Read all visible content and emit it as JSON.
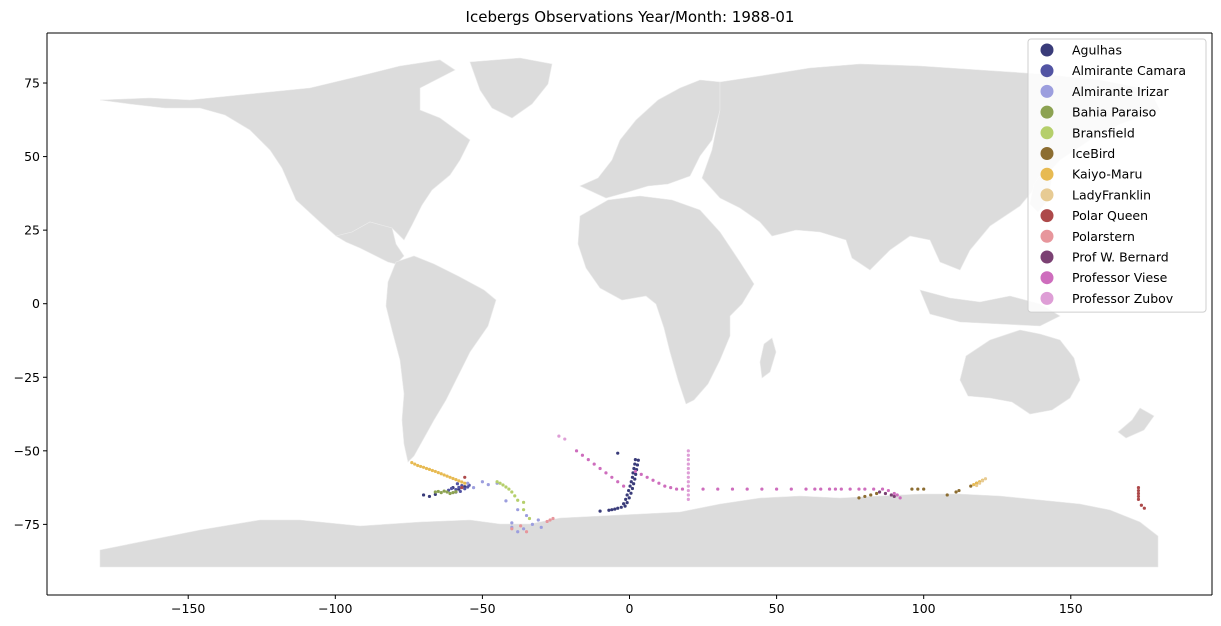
{
  "chart_data": {
    "type": "scatter",
    "title": "Icebergs Observations Year/Month: 1988-01",
    "xlabel": "",
    "ylabel": "",
    "xlim": [
      -198,
      198
    ],
    "ylim": [
      -99,
      92
    ],
    "xticks": [
      -150,
      -100,
      -50,
      0,
      50,
      100,
      150
    ],
    "yticks": [
      -75,
      -50,
      -25,
      0,
      25,
      50,
      75
    ],
    "legend_position": "top-right",
    "background_map": "world countries (light gray)",
    "land_color": "#dcdcdc",
    "series": [
      {
        "name": "Agulhas",
        "color": "#393b79",
        "points": [
          [
            2,
            -53
          ],
          [
            1.8,
            -54.5
          ],
          [
            1.5,
            -56
          ],
          [
            1.2,
            -57.5
          ],
          [
            1,
            -59
          ],
          [
            0.6,
            -60.5
          ],
          [
            0.2,
            -62
          ],
          [
            -0.3,
            -63.5
          ],
          [
            -0.8,
            -65
          ],
          [
            -1.3,
            -66.5
          ],
          [
            -2,
            -68
          ],
          [
            -2.8,
            -69.2
          ],
          [
            3,
            -53.2
          ],
          [
            2.7,
            -54.8
          ],
          [
            2.4,
            -56.4
          ],
          [
            2.1,
            -58
          ],
          [
            1.8,
            -59.6
          ],
          [
            1.4,
            -61.2
          ],
          [
            1,
            -62.8
          ],
          [
            0.5,
            -64.4
          ],
          [
            -0.1,
            -66
          ],
          [
            -0.8,
            -67.6
          ],
          [
            -1.5,
            -68.8
          ],
          [
            -4,
            -69.5
          ],
          [
            -5,
            -69.8
          ],
          [
            -6,
            -70
          ],
          [
            -7,
            -70.2
          ],
          [
            -10,
            -70.5
          ],
          [
            -4,
            -50.8
          ],
          [
            -70,
            -65
          ],
          [
            -68,
            -65.5
          ],
          [
            -66,
            -64.8
          ],
          [
            -60,
            -62.5
          ],
          [
            -58,
            -63
          ],
          [
            -56,
            -62.2
          ],
          [
            -59,
            -64
          ]
        ]
      },
      {
        "name": "Almirante Camara",
        "color": "#5254a3",
        "points": [
          [
            -57,
            -61.8
          ],
          [
            -58,
            -62.4
          ],
          [
            -59,
            -63.2
          ],
          [
            -56,
            -62.9
          ],
          [
            -55,
            -62.3
          ],
          [
            -60.5,
            -62.8
          ],
          [
            -57.5,
            -63.8
          ],
          [
            -54.5,
            -61.7
          ],
          [
            -61.5,
            -63.4
          ],
          [
            -58.5,
            -61.2
          ]
        ]
      },
      {
        "name": "Almirante Irizar",
        "color": "#9c9ede",
        "points": [
          [
            -55,
            -61
          ],
          [
            -53,
            -62.5
          ],
          [
            -50,
            -60.5
          ],
          [
            -48,
            -61.5
          ],
          [
            -45,
            -61
          ],
          [
            -40,
            -76
          ],
          [
            -38,
            -77.5
          ],
          [
            -36,
            -76.5
          ],
          [
            -33,
            -75
          ],
          [
            -31,
            -73.5
          ],
          [
            -30,
            -76
          ],
          [
            -35,
            -72
          ],
          [
            -38,
            -70
          ],
          [
            -42,
            -67
          ],
          [
            -40,
            -74.5
          ]
        ]
      },
      {
        "name": "Bahia Paraiso",
        "color": "#8ca252",
        "points": [
          [
            -62,
            -64
          ],
          [
            -63,
            -63.7
          ],
          [
            -64,
            -64.2
          ],
          [
            -65,
            -63.8
          ],
          [
            -66,
            -64
          ],
          [
            -61,
            -64.5
          ],
          [
            -60,
            -64.2
          ],
          [
            -59,
            -63.9
          ]
        ]
      },
      {
        "name": "Bransfield",
        "color": "#b5cf6b",
        "points": [
          [
            -45,
            -60.5
          ],
          [
            -44,
            -61
          ],
          [
            -43,
            -61.6
          ],
          [
            -42,
            -62.3
          ],
          [
            -41,
            -63
          ],
          [
            -40,
            -64
          ],
          [
            -39,
            -65.3
          ],
          [
            -38,
            -66.8
          ],
          [
            -36,
            -67.5
          ],
          [
            -34,
            -73
          ],
          [
            -36,
            -70
          ]
        ]
      },
      {
        "name": "IceBird",
        "color": "#8c6d31",
        "points": [
          [
            78,
            -66
          ],
          [
            80,
            -65.5
          ],
          [
            82,
            -65
          ],
          [
            84,
            -64.5
          ],
          [
            96,
            -63
          ],
          [
            98,
            -63
          ],
          [
            100,
            -63
          ],
          [
            108,
            -65
          ],
          [
            111,
            -64
          ],
          [
            112,
            -63.5
          ],
          [
            116,
            -62
          ],
          [
            118,
            -61
          ]
        ]
      },
      {
        "name": "Kaiyo-Maru",
        "color": "#e7ba52",
        "points": [
          [
            -74,
            -54
          ],
          [
            -72,
            -55
          ],
          [
            -70,
            -55.6
          ],
          [
            -68,
            -56.3
          ],
          [
            -66,
            -57
          ],
          [
            -64,
            -57.8
          ],
          [
            -62,
            -58.6
          ],
          [
            -60,
            -59.4
          ],
          [
            -58,
            -60.2
          ],
          [
            -56,
            -61
          ],
          [
            -73,
            -54.5
          ],
          [
            -71,
            -55.3
          ],
          [
            -69,
            -56
          ],
          [
            -67,
            -56.7
          ],
          [
            -65,
            -57.4
          ],
          [
            -63,
            -58.2
          ],
          [
            -61,
            -59
          ],
          [
            -59,
            -59.8
          ],
          [
            -57,
            -60.6
          ],
          [
            117,
            -61.5
          ],
          [
            118,
            -61
          ],
          [
            119,
            -60.5
          ],
          [
            120,
            -60
          ]
        ]
      },
      {
        "name": "LadyFranklin",
        "color": "#e7cb94",
        "points": [
          [
            121,
            -59.5
          ],
          [
            120,
            -60.2
          ],
          [
            119,
            -61
          ],
          [
            118,
            -61.8
          ]
        ]
      },
      {
        "name": "Polar Queen",
        "color": "#ad494a",
        "points": [
          [
            173,
            -62.5
          ],
          [
            173,
            -63.5
          ],
          [
            173,
            -64.5
          ],
          [
            173,
            -65.5
          ],
          [
            173,
            -66.5
          ],
          [
            174,
            -68.5
          ],
          [
            175,
            -69.5
          ],
          [
            -56,
            -59
          ],
          [
            -57,
            -62.5
          ]
        ]
      },
      {
        "name": "Polarstern",
        "color": "#e7969c",
        "points": [
          [
            -28,
            -74
          ],
          [
            -27,
            -73.5
          ],
          [
            -26,
            -73
          ],
          [
            -37,
            -75.5
          ],
          [
            -35,
            -77.5
          ],
          [
            -40,
            -76.5
          ]
        ]
      },
      {
        "name": "Prof W. Bernard",
        "color": "#7b4173",
        "points": [
          [
            85,
            -64
          ],
          [
            87,
            -64.5
          ],
          [
            89,
            -65
          ],
          [
            90,
            -65.5
          ]
        ]
      },
      {
        "name": "Professor Viese",
        "color": "#ce6dbd",
        "points": [
          [
            -18,
            -50
          ],
          [
            -16,
            -51.5
          ],
          [
            -14,
            -53
          ],
          [
            -12,
            -54.5
          ],
          [
            -10,
            -56
          ],
          [
            -8,
            -57.5
          ],
          [
            -6,
            -59
          ],
          [
            -4,
            -60.5
          ],
          [
            -2,
            -62
          ],
          [
            2,
            -57
          ],
          [
            4,
            -58
          ],
          [
            6,
            -59
          ],
          [
            8,
            -60
          ],
          [
            10,
            -61
          ],
          [
            12,
            -62
          ],
          [
            14,
            -62.5
          ],
          [
            16,
            -63
          ],
          [
            18,
            -63
          ],
          [
            25,
            -63
          ],
          [
            30,
            -63
          ],
          [
            35,
            -63
          ],
          [
            40,
            -63
          ],
          [
            45,
            -63
          ],
          [
            50,
            -63
          ],
          [
            55,
            -63
          ],
          [
            60,
            -63
          ],
          [
            63,
            -63
          ],
          [
            65,
            -63
          ],
          [
            68,
            -63
          ],
          [
            70,
            -63
          ],
          [
            72,
            -63
          ],
          [
            75,
            -63
          ],
          [
            78,
            -63
          ],
          [
            80,
            -63
          ],
          [
            83,
            -63
          ],
          [
            86,
            -63
          ],
          [
            88,
            -63.5
          ],
          [
            90,
            -64.5
          ],
          [
            91,
            -65
          ],
          [
            92,
            -66
          ]
        ]
      },
      {
        "name": "Professor Zubov",
        "color": "#de9ed6",
        "points": [
          [
            20,
            -50
          ],
          [
            20,
            -51.5
          ],
          [
            20,
            -53
          ],
          [
            20,
            -54.5
          ],
          [
            20,
            -56
          ],
          [
            20,
            -57.5
          ],
          [
            20,
            -59
          ],
          [
            20,
            -60.5
          ],
          [
            20,
            -62
          ],
          [
            20,
            -63.5
          ],
          [
            20,
            -65
          ],
          [
            20,
            -66.5
          ],
          [
            -24,
            -45
          ],
          [
            -22,
            -46
          ]
        ]
      }
    ]
  }
}
